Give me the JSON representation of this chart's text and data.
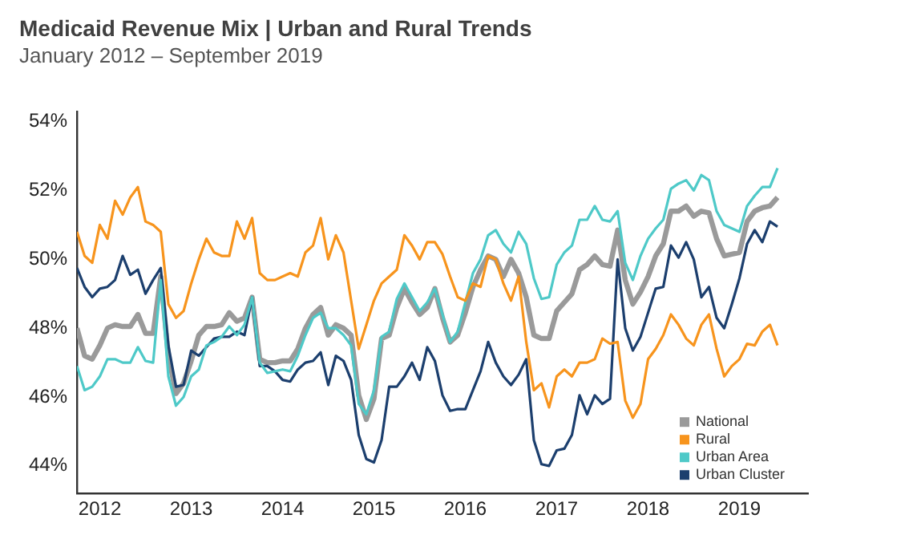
{
  "chart_data": {
    "type": "line",
    "title": "Medicaid Revenue Mix | Urban and Rural Trends",
    "subtitle": "January 2012 – September 2019",
    "x": [
      "2012-01",
      "2012-02",
      "2012-03",
      "2012-04",
      "2012-05",
      "2012-06",
      "2012-07",
      "2012-08",
      "2012-09",
      "2012-10",
      "2012-11",
      "2012-12",
      "2013-01",
      "2013-02",
      "2013-03",
      "2013-04",
      "2013-05",
      "2013-06",
      "2013-07",
      "2013-08",
      "2013-09",
      "2013-10",
      "2013-11",
      "2013-12",
      "2014-01",
      "2014-02",
      "2014-03",
      "2014-04",
      "2014-05",
      "2014-06",
      "2014-07",
      "2014-08",
      "2014-09",
      "2014-10",
      "2014-11",
      "2014-12",
      "2015-01",
      "2015-02",
      "2015-03",
      "2015-04",
      "2015-05",
      "2015-06",
      "2015-07",
      "2015-08",
      "2015-09",
      "2015-10",
      "2015-11",
      "2015-12",
      "2016-01",
      "2016-02",
      "2016-03",
      "2016-04",
      "2016-05",
      "2016-06",
      "2016-07",
      "2016-08",
      "2016-09",
      "2016-10",
      "2016-11",
      "2016-12",
      "2017-01",
      "2017-02",
      "2017-03",
      "2017-04",
      "2017-05",
      "2017-06",
      "2017-07",
      "2017-08",
      "2017-09",
      "2017-10",
      "2017-11",
      "2017-12",
      "2018-01",
      "2018-02",
      "2018-03",
      "2018-04",
      "2018-05",
      "2018-06",
      "2018-07",
      "2018-08",
      "2018-09",
      "2018-10",
      "2018-11",
      "2018-12",
      "2019-01",
      "2019-02",
      "2019-03",
      "2019-04",
      "2019-05",
      "2019-06",
      "2019-07",
      "2019-08",
      "2019-09"
    ],
    "series": [
      {
        "name": "National",
        "color": "#9a9a9a",
        "values": [
          48.0,
          47.2,
          47.1,
          47.5,
          48.0,
          48.1,
          48.05,
          48.05,
          48.4,
          47.85,
          47.85,
          49.5,
          47.2,
          46.1,
          46.4,
          47.05,
          47.8,
          48.05,
          48.05,
          48.1,
          48.45,
          48.2,
          48.3,
          48.9,
          47.1,
          47.0,
          47.0,
          47.05,
          47.05,
          47.4,
          48.0,
          48.4,
          48.6,
          47.8,
          48.1,
          48.0,
          47.8,
          46.05,
          45.35,
          45.95,
          47.7,
          47.8,
          48.6,
          49.15,
          48.75,
          48.4,
          48.6,
          49.15,
          48.3,
          47.6,
          47.8,
          48.45,
          49.2,
          49.7,
          50.1,
          50.0,
          49.5,
          50.0,
          49.6,
          48.9,
          47.8,
          47.7,
          47.7,
          48.5,
          48.75,
          49.0,
          49.7,
          49.85,
          50.1,
          49.85,
          49.8,
          50.85,
          49.4,
          48.7,
          49.05,
          49.5,
          50.1,
          50.45,
          51.4,
          51.4,
          51.55,
          51.25,
          51.4,
          51.35,
          50.6,
          50.1,
          50.15,
          50.2,
          51.1,
          51.4,
          51.5,
          51.55,
          51.8
        ]
      },
      {
        "name": "Rural",
        "color": "#f7941d",
        "values": [
          50.8,
          50.1,
          49.9,
          51.0,
          50.6,
          51.7,
          51.3,
          51.8,
          52.1,
          51.1,
          51.0,
          50.8,
          48.7,
          48.3,
          48.5,
          49.3,
          50.0,
          50.6,
          50.2,
          50.1,
          50.1,
          51.1,
          50.6,
          51.2,
          49.6,
          49.4,
          49.4,
          49.5,
          49.6,
          49.5,
          50.2,
          50.4,
          51.2,
          50.0,
          50.7,
          50.2,
          48.8,
          47.4,
          48.1,
          48.8,
          49.3,
          49.5,
          49.7,
          50.7,
          50.4,
          50.0,
          50.5,
          50.5,
          50.15,
          49.5,
          48.9,
          48.8,
          49.3,
          49.2,
          50.1,
          50.0,
          49.3,
          48.8,
          49.5,
          47.6,
          46.2,
          46.4,
          45.7,
          46.6,
          46.8,
          46.6,
          47.0,
          47.0,
          47.1,
          47.7,
          47.55,
          47.6,
          45.9,
          45.4,
          45.8,
          47.1,
          47.4,
          47.8,
          48.4,
          48.1,
          47.7,
          47.5,
          48.1,
          48.4,
          47.4,
          46.6,
          46.9,
          47.1,
          47.55,
          47.5,
          47.9,
          48.1,
          47.5
        ]
      },
      {
        "name": "Urban Area",
        "color": "#4ec9c8",
        "values": [
          46.9,
          46.2,
          46.3,
          46.6,
          47.1,
          47.1,
          47.0,
          47.0,
          47.45,
          47.05,
          47.0,
          49.4,
          46.6,
          45.75,
          46.0,
          46.6,
          46.8,
          47.5,
          47.6,
          47.75,
          48.05,
          47.8,
          48.1,
          48.9,
          47.0,
          46.7,
          46.75,
          46.8,
          46.75,
          47.2,
          47.8,
          48.3,
          48.45,
          48.0,
          48.0,
          47.8,
          47.5,
          45.8,
          45.5,
          46.2,
          47.75,
          47.9,
          48.85,
          49.3,
          48.9,
          48.5,
          48.75,
          49.15,
          48.4,
          47.6,
          47.9,
          48.75,
          49.6,
          50.0,
          50.7,
          50.85,
          50.45,
          50.2,
          50.8,
          50.45,
          49.45,
          48.85,
          48.9,
          49.85,
          50.2,
          50.4,
          51.15,
          51.15,
          51.55,
          51.15,
          51.1,
          51.4,
          49.9,
          49.4,
          50.1,
          50.6,
          50.9,
          51.15,
          52.05,
          52.2,
          52.3,
          52.0,
          52.45,
          52.3,
          51.4,
          51.0,
          50.9,
          50.8,
          51.55,
          51.85,
          52.1,
          52.1,
          52.65
        ]
      },
      {
        "name": "Urban Cluster",
        "color": "#1c3f6e",
        "values": [
          49.75,
          49.2,
          48.9,
          49.15,
          49.2,
          49.4,
          50.1,
          49.55,
          49.7,
          49.0,
          49.4,
          49.75,
          47.5,
          46.3,
          46.35,
          47.35,
          47.2,
          47.45,
          47.7,
          47.75,
          47.75,
          47.9,
          47.8,
          48.9,
          46.9,
          46.9,
          46.75,
          46.5,
          46.45,
          46.8,
          47.0,
          47.05,
          47.3,
          46.35,
          47.2,
          47.05,
          46.5,
          44.9,
          44.2,
          44.1,
          44.75,
          46.3,
          46.3,
          46.6,
          47.0,
          46.5,
          47.45,
          47.05,
          46.05,
          45.6,
          45.65,
          45.65,
          46.2,
          46.75,
          47.6,
          47.0,
          46.6,
          46.35,
          46.65,
          47.1,
          44.75,
          44.05,
          44.0,
          44.45,
          44.5,
          44.9,
          46.05,
          45.5,
          46.05,
          45.8,
          45.95,
          50.0,
          48.0,
          47.35,
          47.75,
          48.45,
          49.15,
          49.2,
          50.4,
          50.05,
          50.5,
          50.0,
          48.9,
          49.2,
          48.3,
          48.0,
          48.7,
          49.45,
          50.45,
          50.85,
          50.5,
          51.1,
          50.95
        ]
      }
    ],
    "xlim": [
      "2012-01",
      "2020-01"
    ],
    "xticks": [
      {
        "value": "2012-04",
        "label": "2012"
      },
      {
        "value": "2013-04",
        "label": "2013"
      },
      {
        "value": "2014-04",
        "label": "2014"
      },
      {
        "value": "2015-04",
        "label": "2015"
      },
      {
        "value": "2016-04",
        "label": "2016"
      },
      {
        "value": "2017-04",
        "label": "2017"
      },
      {
        "value": "2018-04",
        "label": "2018"
      },
      {
        "value": "2019-04",
        "label": "2019"
      }
    ],
    "ylim": [
      43.2,
      54.3
    ],
    "yticks": [
      {
        "value": 44,
        "label": "44%"
      },
      {
        "value": 46,
        "label": "46%"
      },
      {
        "value": 48,
        "label": "48%"
      },
      {
        "value": 50,
        "label": "50%"
      },
      {
        "value": 52,
        "label": "52%"
      },
      {
        "value": 54,
        "label": "54%"
      }
    ],
    "grid": false,
    "legend": "bottom right",
    "marker": "none",
    "line_style": "solid"
  }
}
